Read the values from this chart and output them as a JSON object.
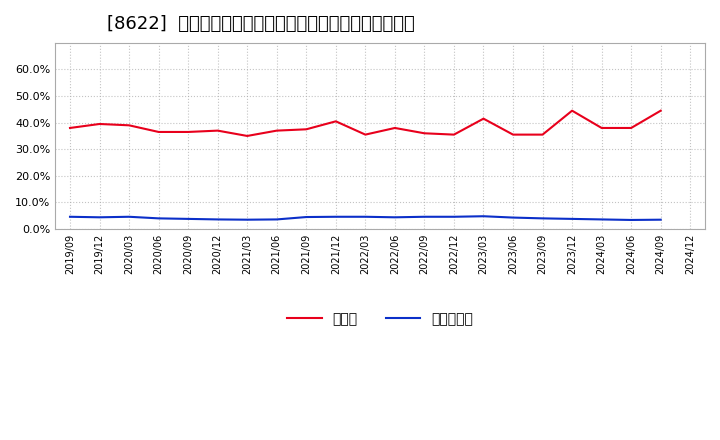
{
  "title": "[8622]  現預金、有利子負債の総資産に対する比率の推移",
  "x_labels": [
    "2019/09",
    "2019/12",
    "2020/03",
    "2020/06",
    "2020/09",
    "2020/12",
    "2021/03",
    "2021/06",
    "2021/09",
    "2021/12",
    "2022/03",
    "2022/06",
    "2022/09",
    "2022/12",
    "2023/03",
    "2023/06",
    "2023/09",
    "2023/12",
    "2024/03",
    "2024/06",
    "2024/09",
    "2024/12"
  ],
  "cash_ratio": [
    0.38,
    0.395,
    0.39,
    0.365,
    0.365,
    0.37,
    0.35,
    0.37,
    0.375,
    0.405,
    0.355,
    0.38,
    0.36,
    0.355,
    0.415,
    0.355,
    0.355,
    0.445,
    0.38,
    0.38,
    0.445,
    null
  ],
  "debt_ratio": [
    0.046,
    0.044,
    0.046,
    0.04,
    0.038,
    0.036,
    0.035,
    0.036,
    0.045,
    0.046,
    0.046,
    0.044,
    0.046,
    0.046,
    0.048,
    0.043,
    0.04,
    0.038,
    0.036,
    0.034,
    0.035,
    null
  ],
  "cash_color": "#e8001c",
  "debt_color": "#0b2fc9",
  "legend_cash": "現預金",
  "legend_debt": "有利子負債",
  "ylim": [
    0.0,
    0.7
  ],
  "yticks": [
    0.0,
    0.1,
    0.2,
    0.3,
    0.4,
    0.5,
    0.6
  ],
  "bg_color": "#ffffff",
  "grid_color": "#aaaaaa",
  "title_fontsize": 13
}
